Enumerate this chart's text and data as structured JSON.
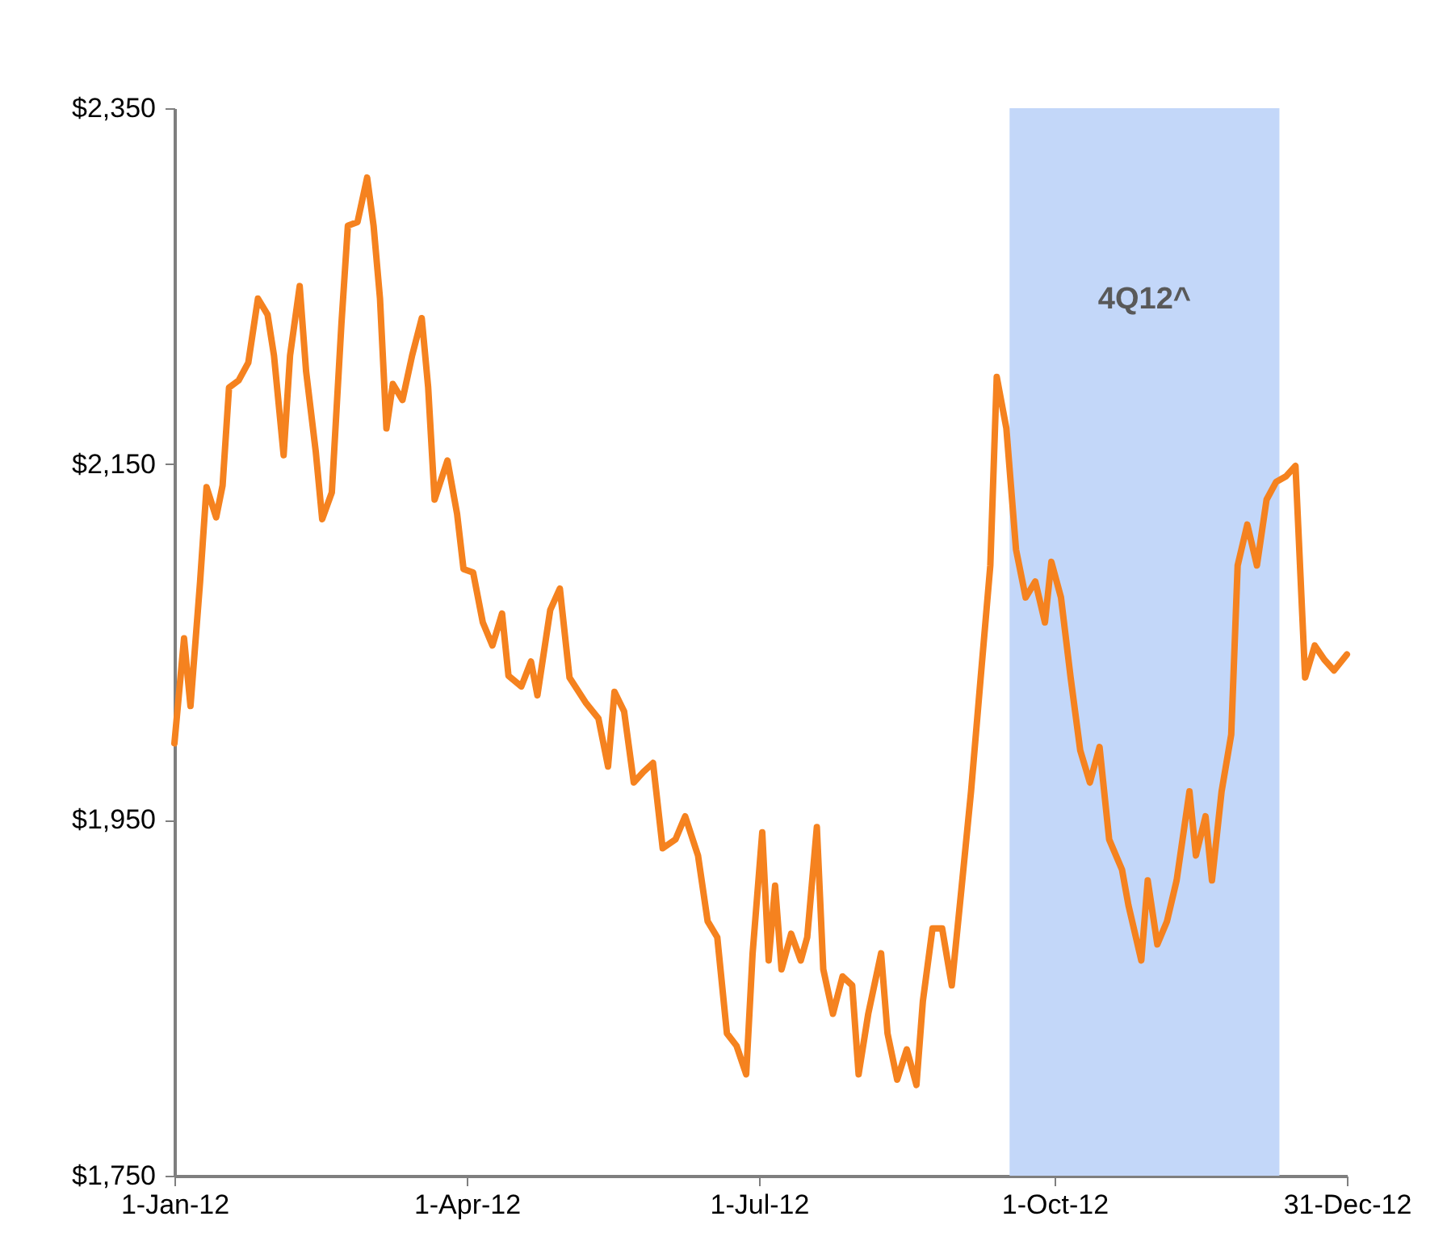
{
  "chart_data": {
    "type": "line",
    "x": [
      "2012-01-01",
      "2012-01-04",
      "2012-01-06",
      "2012-01-09",
      "2012-01-11",
      "2012-01-14",
      "2012-01-16",
      "2012-01-18",
      "2012-01-21",
      "2012-01-24",
      "2012-01-27",
      "2012-01-30",
      "2012-02-01",
      "2012-02-04",
      "2012-02-06",
      "2012-02-09",
      "2012-02-11",
      "2012-02-14",
      "2012-02-16",
      "2012-02-19",
      "2012-02-22",
      "2012-02-24",
      "2012-02-27",
      "2012-03-01",
      "2012-03-03",
      "2012-03-05",
      "2012-03-07",
      "2012-03-09",
      "2012-03-12",
      "2012-03-15",
      "2012-03-18",
      "2012-03-20",
      "2012-03-22",
      "2012-03-26",
      "2012-03-29",
      "2012-03-31",
      "2012-04-03",
      "2012-04-06",
      "2012-04-09",
      "2012-04-12",
      "2012-04-14",
      "2012-04-18",
      "2012-04-21",
      "2012-04-23",
      "2012-04-27",
      "2012-04-30",
      "2012-05-03",
      "2012-05-08",
      "2012-05-12",
      "2012-05-15",
      "2012-05-17",
      "2012-05-20",
      "2012-05-23",
      "2012-05-26",
      "2012-05-29",
      "2012-06-01",
      "2012-06-05",
      "2012-06-08",
      "2012-06-12",
      "2012-06-15",
      "2012-06-18",
      "2012-06-21",
      "2012-06-24",
      "2012-06-27",
      "2012-06-29",
      "2012-07-02",
      "2012-07-04",
      "2012-07-06",
      "2012-07-08",
      "2012-07-11",
      "2012-07-14",
      "2012-07-16",
      "2012-07-19",
      "2012-07-21",
      "2012-07-24",
      "2012-07-27",
      "2012-07-30",
      "2012-08-01",
      "2012-08-04",
      "2012-08-08",
      "2012-08-10",
      "2012-08-13",
      "2012-08-16",
      "2012-08-19",
      "2012-08-21",
      "2012-08-24",
      "2012-08-27",
      "2012-08-30",
      "2012-09-02",
      "2012-09-05",
      "2012-09-08",
      "2012-09-11",
      "2012-09-13",
      "2012-09-16",
      "2012-09-19",
      "2012-09-22",
      "2012-09-25",
      "2012-09-28",
      "2012-09-30",
      "2012-10-03",
      "2012-10-06",
      "2012-10-09",
      "2012-10-12",
      "2012-10-15",
      "2012-10-18",
      "2012-10-22",
      "2012-10-24",
      "2012-10-28",
      "2012-10-30",
      "2012-11-02",
      "2012-11-05",
      "2012-11-08",
      "2012-11-12",
      "2012-11-14",
      "2012-11-17",
      "2012-11-19",
      "2012-11-22",
      "2012-11-25",
      "2012-11-27",
      "2012-11-30",
      "2012-12-03",
      "2012-12-06",
      "2012-12-09",
      "2012-12-12",
      "2012-12-15",
      "2012-12-18",
      "2012-12-21",
      "2012-12-24",
      "2012-12-27",
      "2012-12-31"
    ],
    "series": [
      {
        "color": "#f5821f",
        "values": [
          1993,
          2052,
          2014,
          2084,
          2137,
          2120,
          2138,
          2193,
          2197,
          2207,
          2243,
          2234,
          2211,
          2155,
          2211,
          2250,
          2202,
          2157,
          2119,
          2134,
          2229,
          2284,
          2286,
          2311,
          2284,
          2243,
          2170,
          2195,
          2186,
          2211,
          2232,
          2193,
          2130,
          2152,
          2122,
          2091,
          2089,
          2061,
          2048,
          2066,
          2031,
          2025,
          2039,
          2020,
          2068,
          2080,
          2030,
          2016,
          2007,
          1980,
          2022,
          2011,
          1971,
          1977,
          1982,
          1934,
          1939,
          1952,
          1930,
          1893,
          1884,
          1830,
          1823,
          1807,
          1875,
          1943,
          1871,
          1913,
          1866,
          1886,
          1871,
          1884,
          1946,
          1866,
          1841,
          1862,
          1857,
          1807,
          1841,
          1875,
          1830,
          1804,
          1821,
          1801,
          1848,
          1889,
          1889,
          1857,
          1911,
          1966,
          2030,
          2093,
          2199,
          2170,
          2102,
          2075,
          2084,
          2061,
          2095,
          2075,
          2030,
          1989,
          1971,
          1991,
          1939,
          1922,
          1902,
          1871,
          1916,
          1880,
          1893,
          1916,
          1966,
          1930,
          1952,
          1916,
          1966,
          1998,
          2093,
          2116,
          2093,
          2130,
          2140,
          2143,
          2149,
          2030,
          2048,
          2040,
          2034,
          2043
        ]
      }
    ],
    "xlim": [
      "2012-01-01",
      "2012-12-31"
    ],
    "xticks": [
      {
        "value": "2012-01-01",
        "label": "1-Jan-12"
      },
      {
        "value": "2012-04-01",
        "label": "1-Apr-12"
      },
      {
        "value": "2012-07-01",
        "label": "1-Jul-12"
      },
      {
        "value": "2012-10-01",
        "label": "1-Oct-12"
      },
      {
        "value": "2012-12-31",
        "label": "31-Dec-12"
      }
    ],
    "ylim": [
      1750,
      2350
    ],
    "yticks": [
      {
        "value": 1750,
        "label": "$1,750"
      },
      {
        "value": 1950,
        "label": "$1,950"
      },
      {
        "value": 2150,
        "label": "$2,150"
      },
      {
        "value": 2350,
        "label": "$2,350"
      }
    ],
    "bands": [
      {
        "axis": "x",
        "from": "2012-09-17",
        "to": "2012-12-10",
        "color": "#c3d7f9",
        "label": "4Q12^"
      }
    ],
    "grid": false,
    "marker": "none",
    "line_style": "solid"
  }
}
